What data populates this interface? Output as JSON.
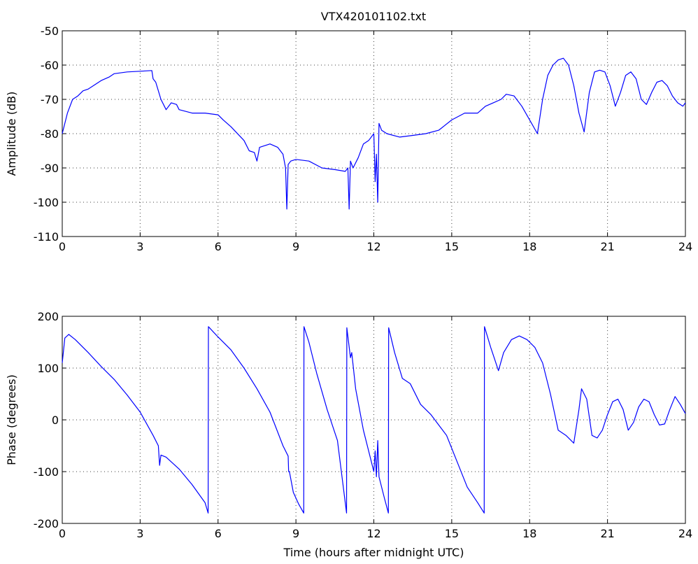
{
  "figure_title": "VTX420101102.txt",
  "chart_data": [
    {
      "type": "line",
      "title": "VTX420101102.txt",
      "xlabel": "",
      "ylabel": "Amplitude (dB)",
      "xlim": [
        0,
        24
      ],
      "ylim": [
        -110,
        -50
      ],
      "xticks": [
        0,
        3,
        6,
        9,
        12,
        15,
        18,
        21,
        24
      ],
      "yticks": [
        -110,
        -100,
        -90,
        -80,
        -70,
        -60,
        -50
      ],
      "grid": true,
      "series": [
        {
          "name": "",
          "color": "#0000ff",
          "x": [
            0,
            0.2,
            0.4,
            0.6,
            0.8,
            1.0,
            1.2,
            1.5,
            1.8,
            2.0,
            2.5,
            3.0,
            3.45,
            3.5,
            3.6,
            3.8,
            4.0,
            4.2,
            4.4,
            4.5,
            5.0,
            5.5,
            6.0,
            6.2,
            6.5,
            7.0,
            7.2,
            7.4,
            7.5,
            7.6,
            8.0,
            8.3,
            8.5,
            8.6,
            8.65,
            8.7,
            8.8,
            9.0,
            9.5,
            10.0,
            10.5,
            10.9,
            11.0,
            11.05,
            11.1,
            11.2,
            11.4,
            11.6,
            11.8,
            12.0,
            12.05,
            12.1,
            12.15,
            12.2,
            12.3,
            12.5,
            13.0,
            13.5,
            14.0,
            14.5,
            15.0,
            15.5,
            16.0,
            16.3,
            16.6,
            16.9,
            17.1,
            17.4,
            17.7,
            18.0,
            18.3,
            18.5,
            18.7,
            18.9,
            19.1,
            19.3,
            19.5,
            19.7,
            19.9,
            20.1,
            20.3,
            20.5,
            20.7,
            20.9,
            21.1,
            21.3,
            21.5,
            21.7,
            21.9,
            22.1,
            22.3,
            22.5,
            22.7,
            22.9,
            23.1,
            23.3,
            23.5,
            23.7,
            23.9,
            24.0
          ],
          "y": [
            -80,
            -74,
            -70,
            -69,
            -67.5,
            -67,
            -66,
            -64.5,
            -63.5,
            -62.5,
            -62,
            -61.8,
            -61.6,
            -64,
            -65,
            -70,
            -73,
            -71,
            -71.5,
            -73,
            -74,
            -74,
            -74.5,
            -76,
            -78,
            -82,
            -85,
            -85.5,
            -88,
            -84,
            -83,
            -84,
            -86,
            -90,
            -102,
            -89,
            -88,
            -87.5,
            -88,
            -90,
            -90.5,
            -91,
            -90,
            -102,
            -88,
            -90,
            -87,
            -83,
            -82,
            -80,
            -94,
            -86,
            -100,
            -77,
            -79,
            -80,
            -81,
            -80.5,
            -80,
            -79,
            -76,
            -74,
            -74,
            -72,
            -71,
            -70,
            -68.5,
            -69,
            -72,
            -76,
            -80,
            -70,
            -63,
            -60,
            -58.5,
            -58,
            -60,
            -66,
            -74,
            -79.5,
            -68,
            -62,
            -61.5,
            -62,
            -66,
            -72,
            -68,
            -63,
            -62,
            -64,
            -70,
            -71.5,
            -68,
            -65,
            -64.5,
            -66,
            -69,
            -71,
            -72,
            -71
          ]
        }
      ]
    },
    {
      "type": "line",
      "title": "",
      "xlabel": "Time (hours after midnight UTC)",
      "ylabel": "Phase (degrees)",
      "xlim": [
        0,
        24
      ],
      "ylim": [
        -200,
        200
      ],
      "xticks": [
        0,
        3,
        6,
        9,
        12,
        15,
        18,
        21,
        24
      ],
      "yticks": [
        -200,
        -100,
        0,
        100,
        200
      ],
      "grid": true,
      "series": [
        {
          "name": "",
          "color": "#0000ff",
          "x": [
            0,
            0.1,
            0.25,
            0.5,
            1.0,
            1.5,
            2.0,
            2.5,
            3.0,
            3.5,
            3.7,
            3.75,
            3.8,
            4.0,
            4.5,
            5.0,
            5.5,
            5.62,
            5.63,
            6.0,
            6.5,
            7.0,
            7.5,
            8.0,
            8.5,
            8.7,
            8.72,
            8.75,
            8.9,
            9.1,
            9.3,
            9.31,
            9.5,
            9.8,
            10.2,
            10.6,
            10.95,
            10.96,
            11.1,
            11.15,
            11.3,
            11.6,
            11.9,
            12.0,
            12.05,
            12.1,
            12.15,
            12.2,
            12.4,
            12.56,
            12.57,
            12.8,
            13.1,
            13.4,
            13.8,
            14.2,
            14.5,
            14.8,
            15.2,
            15.6,
            16.0,
            16.25,
            16.26,
            16.5,
            16.8,
            17.0,
            17.3,
            17.6,
            17.9,
            18.2,
            18.5,
            18.8,
            19.1,
            19.4,
            19.7,
            19.9,
            20.0,
            20.2,
            20.4,
            20.6,
            20.8,
            21.0,
            21.2,
            21.4,
            21.6,
            21.8,
            22.0,
            22.2,
            22.4,
            22.6,
            22.8,
            23.0,
            23.2,
            23.4,
            23.6,
            23.8,
            24.0
          ],
          "y": [
            110,
            158,
            165,
            155,
            130,
            103,
            78,
            48,
            15,
            -30,
            -50,
            -88,
            -68,
            -72,
            -95,
            -125,
            -160,
            -180,
            180,
            160,
            135,
            100,
            60,
            15,
            -50,
            -70,
            -100,
            -100,
            -140,
            -162,
            -180,
            180,
            150,
            90,
            20,
            -40,
            -180,
            178,
            120,
            130,
            60,
            -20,
            -80,
            -100,
            -60,
            -110,
            -40,
            -110,
            -150,
            -180,
            178,
            130,
            80,
            70,
            30,
            10,
            -10,
            -30,
            -80,
            -130,
            -160,
            -180,
            180,
            140,
            95,
            130,
            155,
            162,
            155,
            140,
            110,
            50,
            -20,
            -30,
            -45,
            20,
            60,
            40,
            -30,
            -35,
            -20,
            10,
            35,
            40,
            20,
            -20,
            -5,
            25,
            40,
            35,
            10,
            -10,
            -8,
            20,
            45,
            30,
            12
          ]
        }
      ]
    }
  ]
}
